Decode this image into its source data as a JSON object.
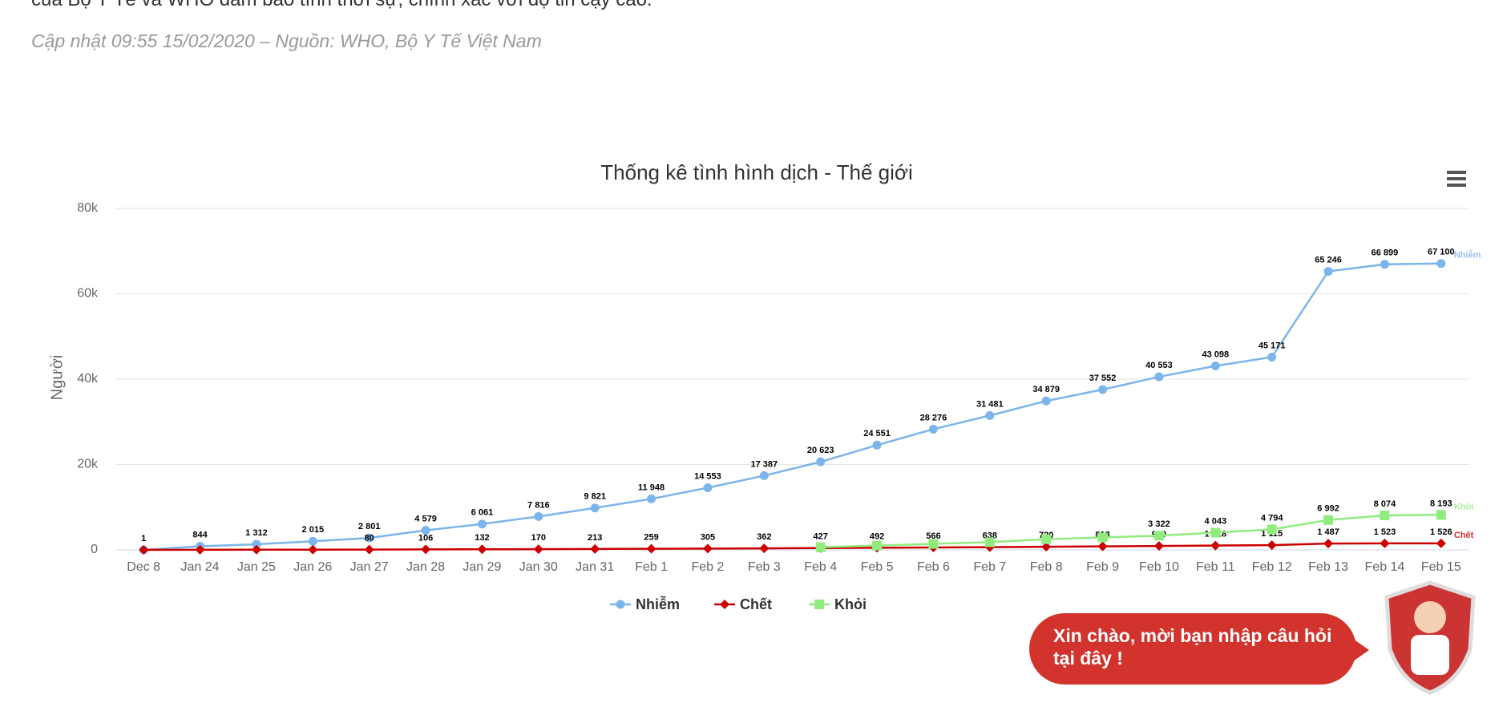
{
  "page": {
    "intro": "của Bộ Y Tế và WHO đảm bảo tính thời sự, chính xác với độ tin cậy cao.",
    "update_note": "Cập nhật 09:55 15/02/2020 – Nguồn: WHO, Bộ Y Tế Việt Nam",
    "chat_bubble": "Xin chào, mời bạn nhập câu hỏi tại đây !"
  },
  "chart_data": {
    "type": "line",
    "title": "Thống kê tình hình dịch - Thế giới",
    "y_label": "Người",
    "categories": [
      "Dec 8",
      "Jan 24",
      "Jan 25",
      "Jan 26",
      "Jan 27",
      "Jan 28",
      "Jan 29",
      "Jan 30",
      "Jan 31",
      "Feb 1",
      "Feb 2",
      "Feb 3",
      "Feb 4",
      "Feb 5",
      "Feb 6",
      "Feb 7",
      "Feb 8",
      "Feb 9",
      "Feb 10",
      "Feb 11",
      "Feb 12",
      "Feb 13",
      "Feb 14",
      "Feb 15"
    ],
    "ylim": [
      0,
      80000
    ],
    "yticks": [
      {
        "value": 0,
        "label": "0"
      },
      {
        "value": 20000,
        "label": "20k"
      },
      {
        "value": 40000,
        "label": "40k"
      },
      {
        "value": 60000,
        "label": "60k"
      },
      {
        "value": 80000,
        "label": "80k"
      }
    ],
    "grid": true,
    "legend": "bottom",
    "series": [
      {
        "name": "Nhiễm",
        "color": "#7cb5ec",
        "marker": "circle",
        "values": [
          1,
          844,
          1312,
          2015,
          2801,
          4579,
          6061,
          7816,
          9821,
          11948,
          14553,
          17387,
          20623,
          24551,
          28276,
          31481,
          34879,
          37552,
          40553,
          43098,
          45171,
          65246,
          66899,
          67100
        ],
        "value_labels": [
          "1",
          "844",
          "1 312",
          "2 015",
          "2 801",
          "4 579",
          "6 061",
          "7 816",
          "9 821",
          "11 948",
          "14 553",
          "17 387",
          "20 623",
          "24 551",
          "28 276",
          "31 481",
          "34 879",
          "37 552",
          "40 553",
          "43 098",
          "45 171",
          "65 246",
          "66 899",
          "67 100"
        ]
      },
      {
        "name": "Chết",
        "color": "#cc0000",
        "marker": "diamond",
        "values": [
          0,
          25,
          41,
          56,
          80,
          106,
          132,
          170,
          213,
          259,
          305,
          362,
          427,
          492,
          566,
          638,
          720,
          813,
          910,
          1018,
          1115,
          1487,
          1523,
          1526
        ],
        "value_labels": [
          null,
          null,
          null,
          null,
          "80",
          "106",
          "132",
          "170",
          "213",
          "259",
          "305",
          "362",
          "427",
          "492",
          "566",
          "638",
          "720",
          "813",
          "910",
          "1 018",
          "1 115",
          "1 487",
          "1 523",
          "1 526"
        ]
      },
      {
        "name": "Khỏi",
        "color": "#90ed7d",
        "marker": "square",
        "values": [
          null,
          null,
          null,
          null,
          null,
          null,
          null,
          null,
          null,
          null,
          null,
          null,
          632,
          1000,
          1400,
          1800,
          2500,
          2900,
          3322,
          4043,
          4794,
          6992,
          8074,
          8193
        ],
        "value_labels": [
          null,
          null,
          null,
          null,
          null,
          null,
          null,
          null,
          null,
          null,
          null,
          null,
          null,
          null,
          null,
          null,
          null,
          null,
          "3 322",
          "4 043",
          "4 794",
          "6 992",
          "8 074",
          "8 193"
        ]
      }
    ]
  }
}
